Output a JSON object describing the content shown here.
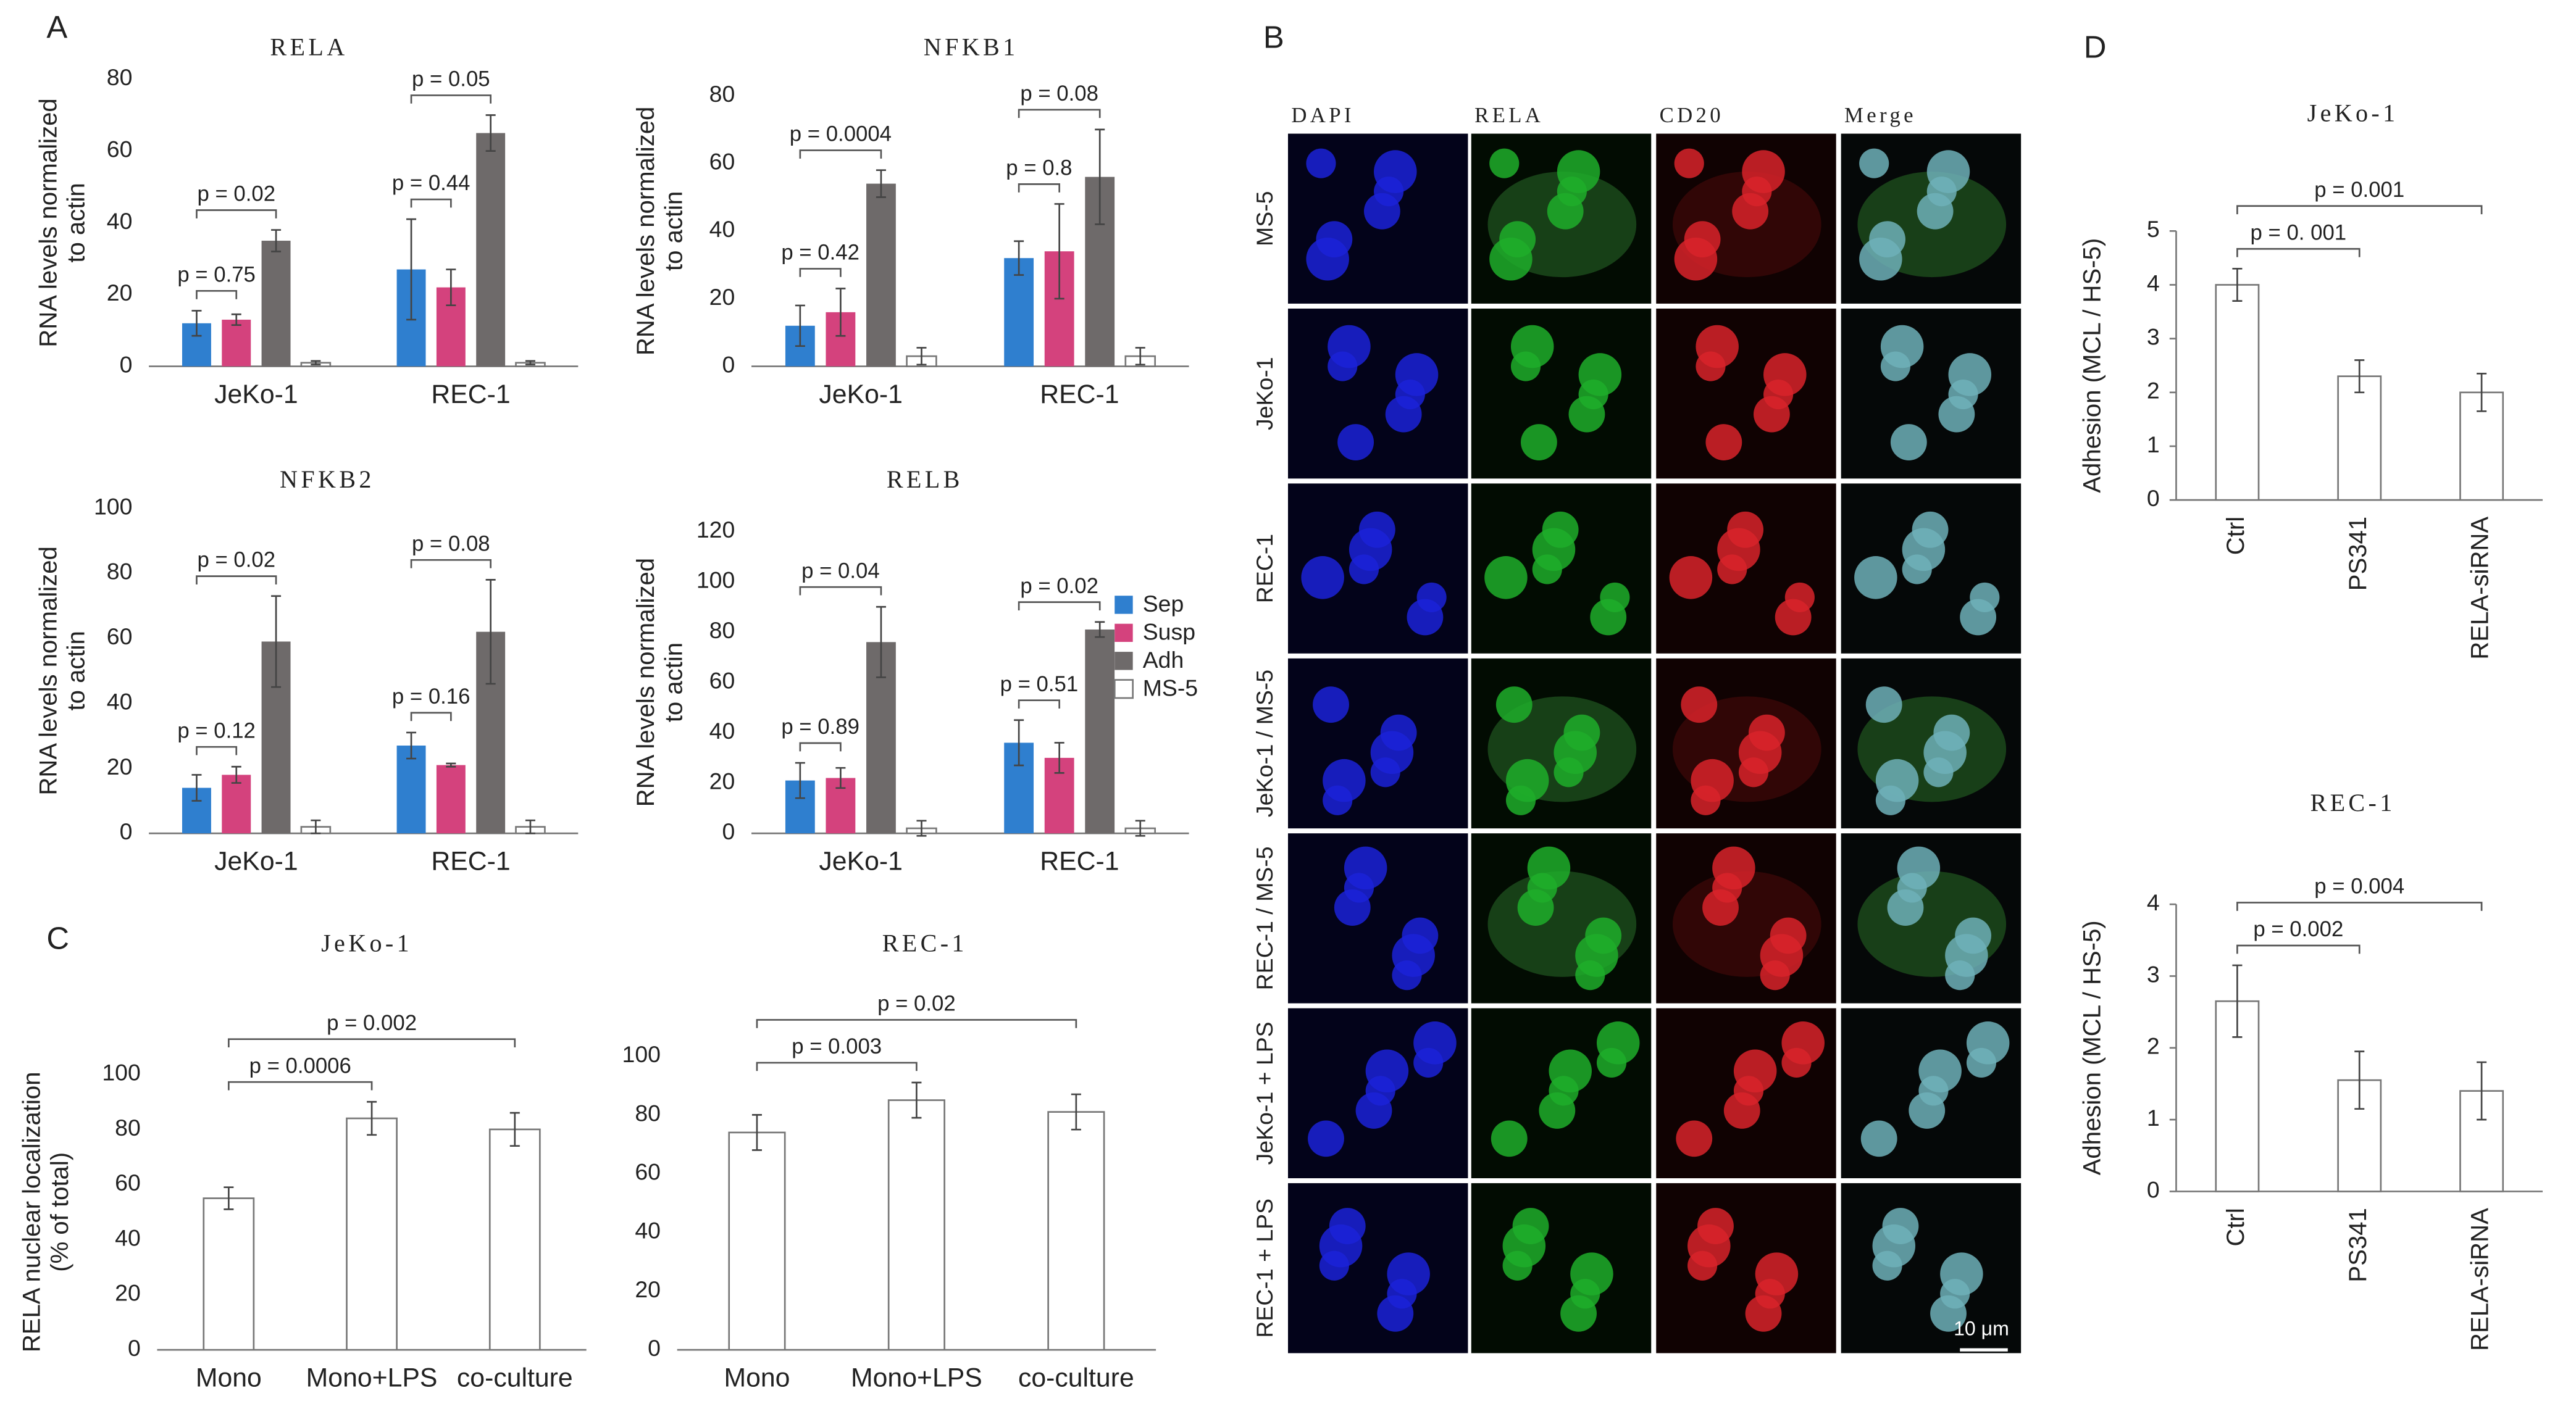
{
  "figure": {
    "panel_labels": [
      "A",
      "B",
      "C",
      "D"
    ],
    "microscopy": {
      "columns": [
        "DAPI",
        "RELA",
        "CD20",
        "Merge"
      ],
      "rows": [
        "MS-5",
        "JeKo-1",
        "REC-1",
        "JeKo-1 / MS-5",
        "REC-1 / MS-5",
        "JeKo-1 + LPS",
        "REC-1 + LPS"
      ],
      "scale_bar": "10 μm"
    }
  },
  "chart_data": [
    {
      "type": "bar",
      "title": "RELA",
      "ylabel_lines": [
        "RNA levels normalized",
        "to actin"
      ],
      "categories": [
        "JeKo-1",
        "REC-1"
      ],
      "series": [
        {
          "name": "Sep",
          "color": "#2f7fcf",
          "values": [
            12,
            27
          ],
          "errors": [
            3.5,
            14
          ]
        },
        {
          "name": "Susp",
          "color": "#d4427d",
          "values": [
            13,
            22
          ],
          "errors": [
            1.5,
            5
          ]
        },
        {
          "name": "Adh",
          "color": "#6e6a6a",
          "values": [
            35,
            65
          ],
          "errors": [
            3,
            5
          ]
        },
        {
          "name": "MS-5",
          "color": "#ffffff",
          "values": [
            1,
            1
          ],
          "errors": [
            0.5,
            0.5
          ]
        }
      ],
      "ylim": [
        0,
        80
      ],
      "yticks": [
        0,
        20,
        40,
        60,
        80
      ],
      "legend": false,
      "annotations": [
        {
          "text": "p = 0.75",
          "category": 0,
          "from": 0,
          "to": 1
        },
        {
          "text": "p = 0.02",
          "category": 0,
          "from": 0,
          "to": 2
        },
        {
          "text": "p = 0.44",
          "category": 1,
          "from": 0,
          "to": 1
        },
        {
          "text": "p = 0.05",
          "category": 1,
          "from": 0,
          "to": 2
        }
      ]
    },
    {
      "type": "bar",
      "title": "NFKB1",
      "ylabel_lines": [
        "RNA levels normalized",
        "to actin"
      ],
      "categories": [
        "JeKo-1",
        "REC-1"
      ],
      "series": [
        {
          "name": "Sep",
          "color": "#2f7fcf",
          "values": [
            12,
            32
          ],
          "errors": [
            6,
            5
          ]
        },
        {
          "name": "Susp",
          "color": "#d4427d",
          "values": [
            16,
            34
          ],
          "errors": [
            7,
            14
          ]
        },
        {
          "name": "Adh",
          "color": "#6e6a6a",
          "values": [
            54,
            56
          ],
          "errors": [
            4,
            14
          ]
        },
        {
          "name": "MS-5",
          "color": "#ffffff",
          "values": [
            3,
            3
          ],
          "errors": [
            2.5,
            2.5
          ]
        }
      ],
      "ylim": [
        0,
        80
      ],
      "yticks": [
        0,
        20,
        40,
        60,
        80
      ],
      "legend": false,
      "annotations": [
        {
          "text": "p = 0.42",
          "category": 0,
          "from": 0,
          "to": 1
        },
        {
          "text": "p = 0.0004",
          "category": 0,
          "from": 0,
          "to": 2
        },
        {
          "text": "p = 0.8",
          "category": 1,
          "from": 0,
          "to": 1
        },
        {
          "text": "p = 0.08",
          "category": 1,
          "from": 0,
          "to": 2
        }
      ]
    },
    {
      "type": "bar",
      "title": "NFKB2",
      "ylabel_lines": [
        "RNA levels normalized",
        "to actin"
      ],
      "categories": [
        "JeKo-1",
        "REC-1"
      ],
      "series": [
        {
          "name": "Sep",
          "color": "#2f7fcf",
          "values": [
            14,
            27
          ],
          "errors": [
            4,
            4
          ]
        },
        {
          "name": "Susp",
          "color": "#d4427d",
          "values": [
            18,
            21
          ],
          "errors": [
            2.5,
            0.5
          ]
        },
        {
          "name": "Adh",
          "color": "#6e6a6a",
          "values": [
            59,
            62
          ],
          "errors": [
            14,
            16
          ]
        },
        {
          "name": "MS-5",
          "color": "#ffffff",
          "values": [
            2,
            2
          ],
          "errors": [
            2,
            2
          ]
        }
      ],
      "ylim": [
        0,
        100
      ],
      "yticks": [
        0,
        20,
        40,
        60,
        80,
        100
      ],
      "legend": false,
      "annotations": [
        {
          "text": "p = 0.12",
          "category": 0,
          "from": 0,
          "to": 1
        },
        {
          "text": "p = 0.02",
          "category": 0,
          "from": 0,
          "to": 2
        },
        {
          "text": "p = 0.16",
          "category": 1,
          "from": 0,
          "to": 1
        },
        {
          "text": "p = 0.08",
          "category": 1,
          "from": 0,
          "to": 2
        }
      ]
    },
    {
      "type": "bar",
      "title": "RELB",
      "ylabel_lines": [
        "RNA levels normalized",
        "to actin"
      ],
      "categories": [
        "JeKo-1",
        "REC-1"
      ],
      "series": [
        {
          "name": "Sep",
          "color": "#2f7fcf",
          "values": [
            21,
            36
          ],
          "errors": [
            7,
            9
          ]
        },
        {
          "name": "Susp",
          "color": "#d4427d",
          "values": [
            22,
            30
          ],
          "errors": [
            4,
            6
          ]
        },
        {
          "name": "Adh",
          "color": "#6e6a6a",
          "values": [
            76,
            81
          ],
          "errors": [
            14,
            3
          ]
        },
        {
          "name": "MS-5",
          "color": "#ffffff",
          "values": [
            2,
            2
          ],
          "errors": [
            3,
            3
          ]
        }
      ],
      "ylim": [
        0,
        120
      ],
      "yticks": [
        0,
        20,
        40,
        60,
        80,
        100,
        120
      ],
      "legend": "right",
      "annotations": [
        {
          "text": "p = 0.89",
          "category": 0,
          "from": 0,
          "to": 1
        },
        {
          "text": "p = 0.04",
          "category": 0,
          "from": 0,
          "to": 2
        },
        {
          "text": "p = 0.51",
          "category": 1,
          "from": 0,
          "to": 1
        },
        {
          "text": "p = 0.02",
          "category": 1,
          "from": 0,
          "to": 2
        }
      ]
    },
    {
      "type": "bar",
      "title": "JeKo-1",
      "ylabel_lines": [
        "RELA nuclear localization",
        "(% of total)"
      ],
      "categories": [
        "Mono",
        "Mono+LPS",
        "co-culture"
      ],
      "values": [
        55,
        84,
        80
      ],
      "errors": [
        4,
        6,
        6
      ],
      "color": "#ffffff",
      "ylim": [
        0,
        100
      ],
      "yticks": [
        0,
        20,
        40,
        60,
        80,
        100
      ],
      "annotations": [
        {
          "text": "p = 0.0006",
          "from": 0,
          "to": 1
        },
        {
          "text": "p = 0.002",
          "from": 0,
          "to": 2
        }
      ]
    },
    {
      "type": "bar",
      "title": "REC-1",
      "categories": [
        "Mono",
        "Mono+LPS",
        "co-culture"
      ],
      "values": [
        74,
        85,
        81
      ],
      "errors": [
        6,
        6,
        6
      ],
      "color": "#ffffff",
      "ylim": [
        0,
        100
      ],
      "yticks": [
        0,
        20,
        40,
        60,
        80,
        100
      ],
      "annotations": [
        {
          "text": "p = 0.003",
          "from": 0,
          "to": 1
        },
        {
          "text": "p = 0.02",
          "from": 0,
          "to": 2
        }
      ]
    },
    {
      "type": "bar",
      "title": "JeKo-1",
      "ylabel_lines": [
        "Adhesion (MCL / HS-5)"
      ],
      "categories": [
        "Ctrl",
        "PS341",
        "RELA-siRNA"
      ],
      "values": [
        4.0,
        2.3,
        2.0
      ],
      "errors": [
        0.3,
        0.3,
        0.35
      ],
      "color": "#ffffff",
      "ylim": [
        0,
        5
      ],
      "yticks": [
        0,
        1,
        2,
        3,
        4,
        5
      ],
      "annotations": [
        {
          "text": "p = 0. 001",
          "from": 0,
          "to": 1
        },
        {
          "text": "p = 0.001",
          "from": 0,
          "to": 2
        }
      ]
    },
    {
      "type": "bar",
      "title": "REC-1",
      "ylabel_lines": [
        "Adhesion (MCL / HS-5)"
      ],
      "categories": [
        "Ctrl",
        "PS341",
        "RELA-siRNA"
      ],
      "values": [
        2.65,
        1.55,
        1.4
      ],
      "errors": [
        0.5,
        0.4,
        0.4
      ],
      "color": "#ffffff",
      "ylim": [
        0,
        4
      ],
      "yticks": [
        0,
        1,
        2,
        3,
        4
      ],
      "annotations": [
        {
          "text": "p = 0.002",
          "from": 0,
          "to": 1
        },
        {
          "text": "p = 0.004",
          "from": 0,
          "to": 2
        }
      ]
    }
  ]
}
